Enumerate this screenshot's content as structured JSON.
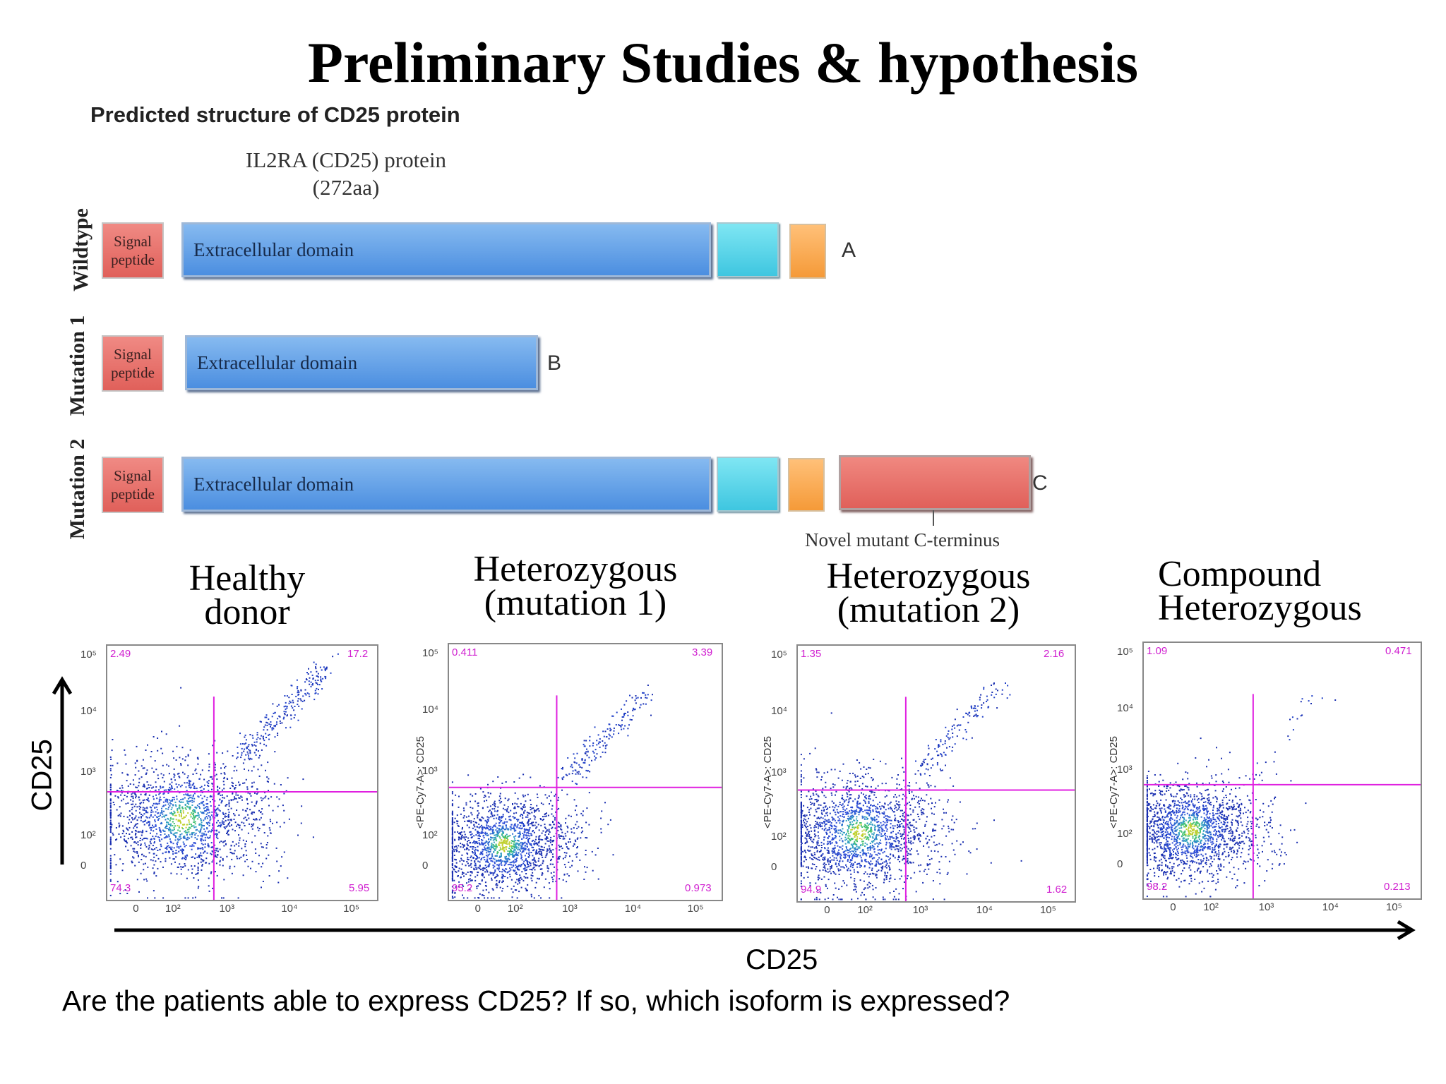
{
  "title": "Preliminary Studies & hypothesis",
  "section_title": "Predicted structure of CD25 protein",
  "protein": {
    "name": "IL2RA (CD25) protein",
    "length": "(272aa)"
  },
  "rows": [
    {
      "label": "Wildtype",
      "signal": "Signal peptide",
      "domain": "Extracellular domain",
      "letter": "A"
    },
    {
      "label": "Mutation 1",
      "signal": "Signal peptide",
      "domain": "Extracellular domain",
      "letter": "B"
    },
    {
      "label": "Mutation 2",
      "signal": "Signal peptide",
      "domain": "Extracellular domain",
      "letter": "C"
    }
  ],
  "novel_terminus": "Novel mutant C-terminus",
  "groups": [
    {
      "line1": "Healthy",
      "line2": "donor"
    },
    {
      "line1": "Heterozygous",
      "line2": "(mutation 1)"
    },
    {
      "line1": "Heterozygous",
      "line2": "(mutation 2)"
    },
    {
      "line1": "Compound",
      "line2": "Heterozygous"
    }
  ],
  "y_axis_label": "CD25",
  "x_axis_label": "CD25",
  "question": "Are the patients able to express CD25? If so, which isoform is expressed?",
  "plot_ylabel": "<PE-Cy7-A>: CD25",
  "x_ticks": [
    "0",
    "10²",
    "10³",
    "10⁴",
    "10⁵"
  ],
  "y_ticks": [
    "10⁵",
    "10⁴",
    "10³",
    "10²",
    "0"
  ],
  "chart_data": [
    {
      "type": "scatter",
      "panel": "Healthy donor",
      "quadrants": {
        "upper_left": "2.49",
        "upper_right": "17.2",
        "lower_left": "74.3",
        "lower_right": "5.95"
      }
    },
    {
      "type": "scatter",
      "panel": "Heterozygous (mutation 1)",
      "quadrants": {
        "upper_left": "0.411",
        "upper_right": "3.39",
        "lower_left": "95.2",
        "lower_right": "0.973"
      }
    },
    {
      "type": "scatter",
      "panel": "Heterozygous (mutation 2)",
      "quadrants": {
        "upper_left": "1.35",
        "upper_right": "2.16",
        "lower_left": "94.9",
        "lower_right": "1.62"
      }
    },
    {
      "type": "scatter",
      "panel": "Compound Heterozygous",
      "quadrants": {
        "upper_left": "1.09",
        "upper_right": "0.471",
        "lower_left": "98.2",
        "lower_right": "0.213"
      }
    }
  ],
  "colors": {
    "quadrant_gate": "#e020e0",
    "signal_peptide": "#e8706a",
    "extracellular": "#5b9be6",
    "transmembrane": "#4fd0e6",
    "cytoplasmic": "#f7a545",
    "mutant_terminus": "#e8706a"
  }
}
